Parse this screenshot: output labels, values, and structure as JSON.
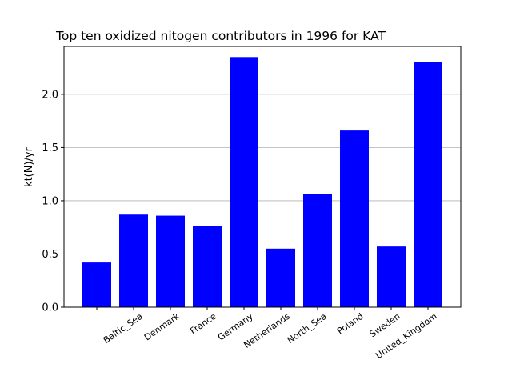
{
  "chart_data": {
    "type": "bar",
    "title": "Top ten oxidized nitogen contributors in 1996 for  KAT",
    "xlabel": "",
    "ylabel": "kt(N)/yr",
    "categories": [
      "",
      "Baltic_Sea",
      "Denmark",
      "France",
      "Germany",
      "Netherlands",
      "North_Sea",
      "Poland",
      "Sweden",
      "United_Kingdom"
    ],
    "values": [
      0.42,
      0.87,
      0.86,
      0.76,
      2.35,
      0.55,
      1.06,
      1.66,
      0.57,
      2.3
    ],
    "ylim": [
      0,
      2.45
    ],
    "yticks": [
      "0.0",
      "0.5",
      "1.0",
      "1.5",
      "2.0"
    ],
    "grid": "y",
    "bar_color": "#0000ff"
  }
}
